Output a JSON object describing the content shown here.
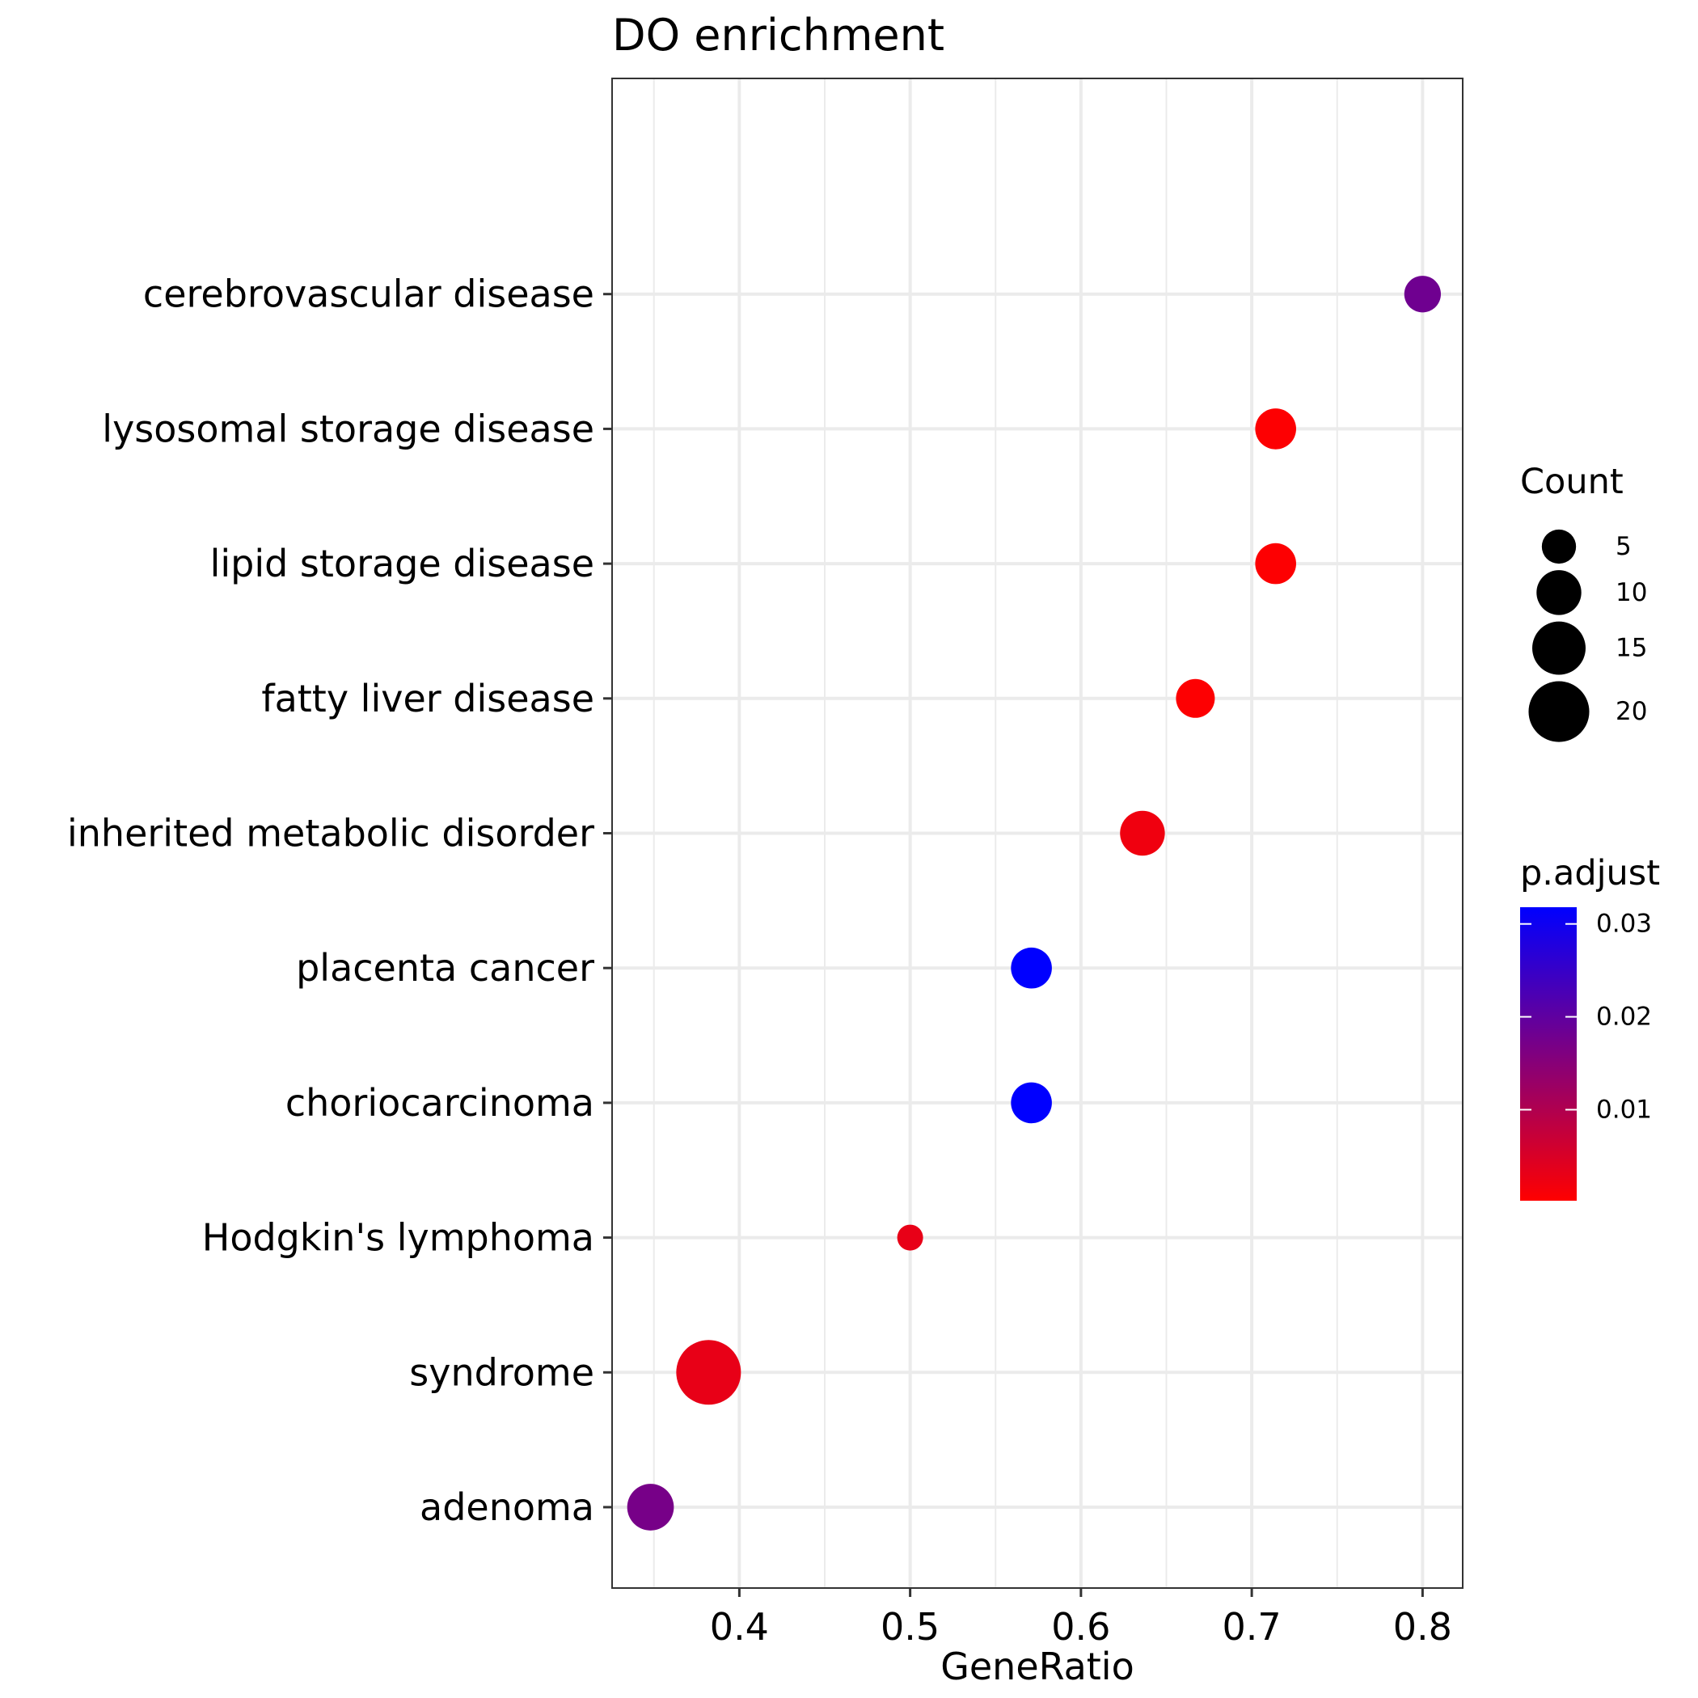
{
  "chart_data": {
    "type": "scatter",
    "title": "DO enrichment",
    "xlabel": "GeneRatio",
    "ylabel": "",
    "xlim": [
      0.3255,
      0.8235
    ],
    "x_ticks": [
      {
        "value": 0.4,
        "label": "0.4"
      },
      {
        "value": 0.5,
        "label": "0.5"
      },
      {
        "value": 0.6,
        "label": "0.6"
      },
      {
        "value": 0.7,
        "label": "0.7"
      },
      {
        "value": 0.8,
        "label": "0.8"
      }
    ],
    "x_minor_ticks": [
      0.35,
      0.45,
      0.55,
      0.65,
      0.75
    ],
    "grid": true,
    "categories": [
      "adenoma",
      "syndrome",
      "Hodgkin's lymphoma",
      "choriocarcinoma",
      "placenta cancer",
      "inherited metabolic disorder",
      "fatty liver disease",
      "lipid storage disease",
      "lysosomal storage disease",
      "cerebrovascular disease"
    ],
    "points": [
      {
        "category": "adenoma",
        "gene_ratio": 0.348,
        "count": 11,
        "p_adjust": 0.017
      },
      {
        "category": "syndrome",
        "gene_ratio": 0.382,
        "count": 23,
        "p_adjust": 0.003
      },
      {
        "category": "Hodgkin's lymphoma",
        "gene_ratio": 0.5,
        "count": 2,
        "p_adjust": 0.003
      },
      {
        "category": "choriocarcinoma",
        "gene_ratio": 0.571,
        "count": 8,
        "p_adjust": 0.032
      },
      {
        "category": "placenta cancer",
        "gene_ratio": 0.571,
        "count": 8,
        "p_adjust": 0.032
      },
      {
        "category": "inherited metabolic disorder",
        "gene_ratio": 0.636,
        "count": 10,
        "p_adjust": 0.002
      },
      {
        "category": "fatty liver disease",
        "gene_ratio": 0.667,
        "count": 7,
        "p_adjust": 0.0005
      },
      {
        "category": "lipid storage disease",
        "gene_ratio": 0.714,
        "count": 8,
        "p_adjust": 0.0005
      },
      {
        "category": "lysosomal storage disease",
        "gene_ratio": 0.714,
        "count": 8,
        "p_adjust": 0.0005
      },
      {
        "category": "cerebrovascular disease",
        "gene_ratio": 0.8,
        "count": 6,
        "p_adjust": 0.018
      }
    ],
    "size_legend": {
      "title": "Count",
      "entries": [
        {
          "value": 5,
          "label": "5"
        },
        {
          "value": 10,
          "label": "10"
        },
        {
          "value": 15,
          "label": "15"
        },
        {
          "value": 20,
          "label": "20"
        }
      ]
    },
    "color_legend": {
      "title": "p.adjust",
      "low_color": "#FF0000",
      "high_color": "#0000FF",
      "range": [
        0.0002,
        0.0318
      ],
      "ticks": [
        {
          "value": 0.01,
          "label": "0.01"
        },
        {
          "value": 0.02,
          "label": "0.02"
        },
        {
          "value": 0.03,
          "label": "0.03"
        }
      ]
    },
    "legend_position": "right"
  }
}
